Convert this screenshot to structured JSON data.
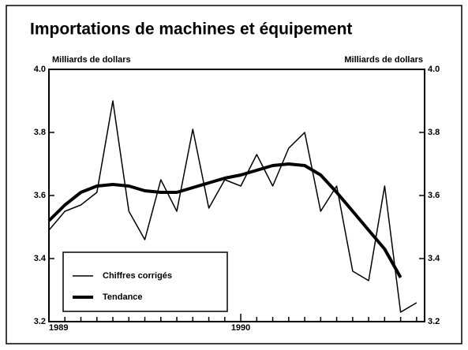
{
  "chart_data": {
    "type": "line",
    "title": "Importations de machines et équipement",
    "y_label": "Milliards de dollars",
    "y2_label": "Milliards de dollars",
    "categories": [
      "1989",
      null,
      null,
      null,
      null,
      null,
      null,
      null,
      null,
      null,
      null,
      null,
      "1990",
      null,
      null,
      null,
      null,
      null,
      null,
      null,
      null,
      null,
      null,
      null
    ],
    "series": [
      {
        "name": "Chiffres corrigés",
        "color": "#000000",
        "width": 1.5,
        "values": [
          3.49,
          3.55,
          3.57,
          3.61,
          3.9,
          3.55,
          3.46,
          3.65,
          3.55,
          3.81,
          3.56,
          3.65,
          3.63,
          3.73,
          3.63,
          3.75,
          3.8,
          3.55,
          3.63,
          3.36,
          3.33,
          3.63,
          3.23,
          3.26
        ]
      },
      {
        "name": "Tendance",
        "color": "#000000",
        "width": 4,
        "values": [
          3.52,
          3.57,
          3.61,
          3.63,
          3.635,
          3.63,
          3.615,
          3.61,
          3.61,
          3.625,
          3.64,
          3.655,
          3.665,
          3.68,
          3.695,
          3.7,
          3.695,
          3.665,
          3.61,
          3.55,
          3.49,
          3.43,
          3.34,
          null
        ]
      }
    ],
    "ylim": [
      3.2,
      4.0
    ],
    "yticks": [
      3.2,
      3.4,
      3.6,
      3.8,
      {
        "value": 4,
        "label": "4.0"
      }
    ],
    "legend": "lower left"
  }
}
